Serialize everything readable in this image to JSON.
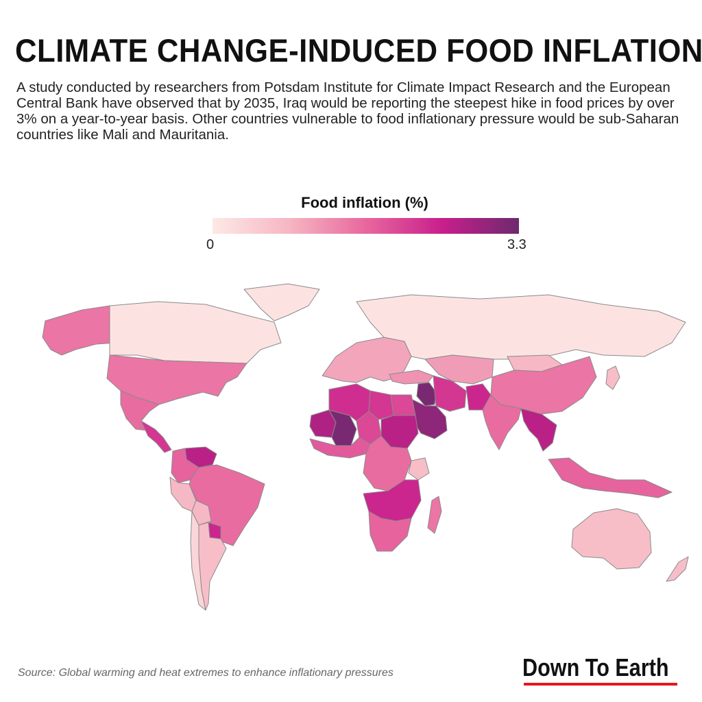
{
  "title": "CLIMATE CHANGE-INDUCED FOOD INFLATION",
  "description": "A study conducted by researchers from Potsdam Institute for Climate Impact Research and the European Central Bank have observed that by 2035, Iraq would be reporting the steepest hike in food prices by over 3% on a year-to-year basis. Other countries vulnerable to food inflationary pressure would be sub-Saharan countries like Mali and Mauritania.",
  "legend": {
    "title": "Food inflation (%)",
    "min_label": "0",
    "max_label": "3.3",
    "min": 0,
    "max": 3.3,
    "colors": [
      "#fde9e5",
      "#f6b6c3",
      "#e8679e",
      "#c81f8c",
      "#6d2a6e"
    ]
  },
  "map_data": {
    "regions": [
      {
        "name": "Canada",
        "value": 0.1
      },
      {
        "name": "Alaska",
        "value": 1.5
      },
      {
        "name": "Greenland",
        "value": 0.1
      },
      {
        "name": "United States",
        "value": 1.5
      },
      {
        "name": "Mexico",
        "value": 1.6
      },
      {
        "name": "Central America",
        "value": 2.2
      },
      {
        "name": "Venezuela",
        "value": 2.6
      },
      {
        "name": "Colombia",
        "value": 1.7
      },
      {
        "name": "Peru",
        "value": 0.8
      },
      {
        "name": "Brazil",
        "value": 1.6
      },
      {
        "name": "Bolivia",
        "value": 0.8
      },
      {
        "name": "Chile",
        "value": 0.3
      },
      {
        "name": "Paraguay",
        "value": 2.4
      },
      {
        "name": "Argentina",
        "value": 0.7
      },
      {
        "name": "Russia",
        "value": 0.1
      },
      {
        "name": "Europe",
        "value": 1.0
      },
      {
        "name": "Turkey",
        "value": 1.2
      },
      {
        "name": "Iraq",
        "value": 3.2
      },
      {
        "name": "Saudi Arabia",
        "value": 3.0
      },
      {
        "name": "Iran",
        "value": 2.2
      },
      {
        "name": "Central Asia",
        "value": 1.1
      },
      {
        "name": "Mongolia",
        "value": 0.8
      },
      {
        "name": "China",
        "value": 1.5
      },
      {
        "name": "Japan",
        "value": 0.7
      },
      {
        "name": "India",
        "value": 1.6
      },
      {
        "name": "Pakistan",
        "value": 2.4
      },
      {
        "name": "Mainland Southeast Asia",
        "value": 2.6
      },
      {
        "name": "Maritime Southeast Asia",
        "value": 1.7
      },
      {
        "name": "Mali",
        "value": 3.2
      },
      {
        "name": "Mauritania",
        "value": 2.7
      },
      {
        "name": "Algeria",
        "value": 2.3
      },
      {
        "name": "Libya",
        "value": 2.2
      },
      {
        "name": "Egypt",
        "value": 2.0
      },
      {
        "name": "Sudan",
        "value": 2.6
      },
      {
        "name": "Chad",
        "value": 2.0
      },
      {
        "name": "West Africa",
        "value": 1.8
      },
      {
        "name": "Central Africa",
        "value": 1.6
      },
      {
        "name": "Kenya",
        "value": 0.7
      },
      {
        "name": "Southern Africa",
        "value": 2.4
      },
      {
        "name": "South Africa",
        "value": 1.7
      },
      {
        "name": "Madagascar",
        "value": 1.5
      },
      {
        "name": "Australia",
        "value": 0.7
      },
      {
        "name": "New Zealand",
        "value": 0.7
      }
    ]
  },
  "source": "Source:  Global warming and heat extremes to enhance inflationary pressures",
  "brand": "Down To Earth"
}
